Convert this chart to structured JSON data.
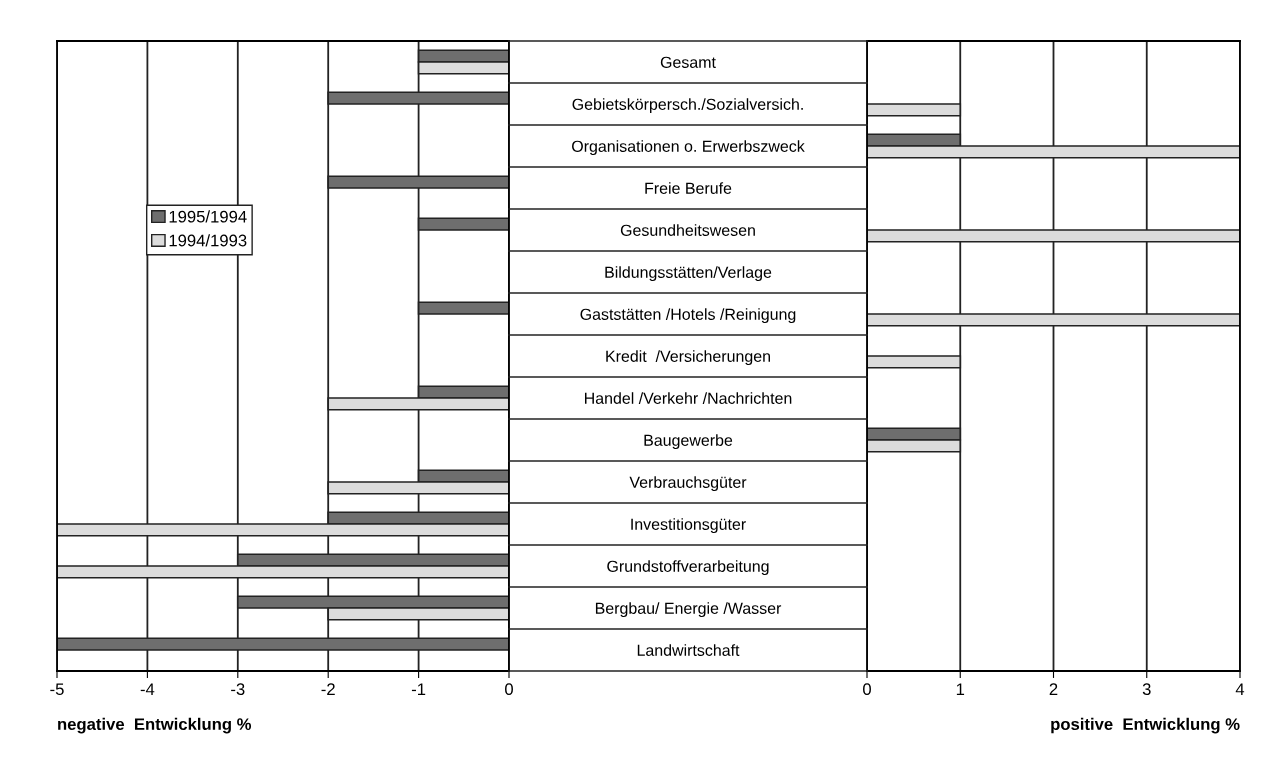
{
  "chart_data": [
    {
      "type": "bar",
      "orientation": "horizontal",
      "xlabel": "negative  Entwicklung %",
      "categories": [
        "Gesamt",
        "Gebietskörpersch./Sozialversich.",
        "Organisationen o. Erwerbszweck",
        "Freie Berufe",
        "Gesundheitswesen",
        "Bildungsstätten/Verlage",
        "Gaststätten /Hotels /Reinigung",
        "Kredit  /Versicherungen",
        "Handel /Verkehr /Nachrichten",
        "Baugewerbe",
        "Verbrauchsgüter",
        "Investitionsgüter",
        "Grundstoffverarbeitung",
        "Bergbau/ Energie /Wasser",
        "Landwirtschaft"
      ],
      "series": [
        {
          "name": "1995/1994",
          "color": "#6e6e6e",
          "values": [
            -1,
            -2,
            null,
            -2,
            -1,
            null,
            -1,
            null,
            -1,
            null,
            -1,
            -2,
            -3,
            -3,
            -5
          ]
        },
        {
          "name": "1994/1993",
          "color": "#dcdcdc",
          "values": [
            -1,
            null,
            null,
            null,
            null,
            null,
            null,
            null,
            -2,
            null,
            -2,
            -5,
            -5,
            -2,
            null
          ]
        }
      ],
      "xlim": [
        -5,
        0
      ],
      "xticks": [
        -5,
        -4,
        -3,
        -2,
        -1,
        0
      ],
      "grid": "x",
      "legend": "left"
    },
    {
      "type": "bar",
      "orientation": "horizontal",
      "xlabel": "positive  Entwicklung %",
      "categories": [
        null,
        null,
        null,
        null,
        null,
        null,
        null,
        null,
        null,
        null,
        null,
        null,
        null,
        null,
        null
      ],
      "series": [
        {
          "color": "#6e6e6e",
          "values": [
            null,
            null,
            1,
            null,
            null,
            null,
            null,
            null,
            null,
            1,
            null,
            null,
            null,
            null,
            null
          ]
        },
        {
          "color": "#dcdcdc",
          "values": [
            null,
            1,
            4,
            null,
            4,
            null,
            4,
            1,
            null,
            1,
            null,
            null,
            null,
            null,
            null
          ]
        }
      ],
      "xlim": [
        0,
        4
      ],
      "xticks": [
        0,
        1,
        2,
        3,
        4
      ],
      "grid": "x",
      "tick_labels": "x"
    }
  ]
}
